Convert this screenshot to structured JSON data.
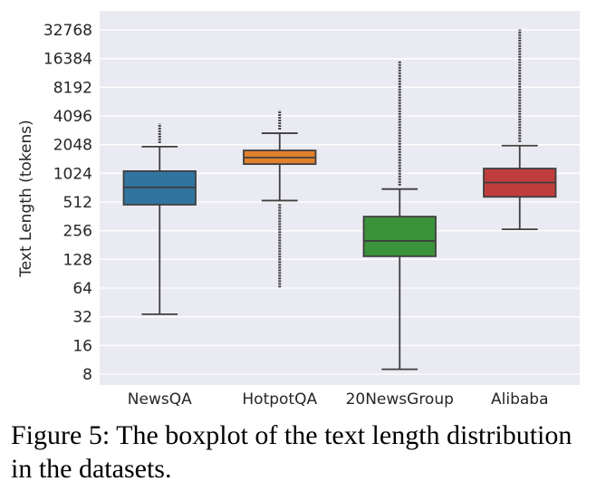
{
  "chart_data": {
    "type": "boxplot",
    "title": "",
    "xlabel": "",
    "ylabel": "Text Length (tokens)",
    "yscale": "log2",
    "ylim": [
      6.5,
      42000
    ],
    "yticks": [
      8,
      16,
      32,
      64,
      128,
      256,
      512,
      1024,
      2048,
      4096,
      8192,
      16384,
      32768
    ],
    "ytick_labels": [
      "8",
      "16",
      "32",
      "64",
      "128",
      "256",
      "512",
      "1024",
      "2048",
      "4096",
      "8192",
      "16384",
      "32768"
    ],
    "grid": true,
    "categories": [
      "NewsQA",
      "HotpotQA",
      "20NewsGroup",
      "Alibaba"
    ],
    "boxes": [
      {
        "category": "NewsQA",
        "color": "#3274a1",
        "whisker_low": 34,
        "q1": 480,
        "median": 730,
        "q3": 1080,
        "whisker_high": 1950,
        "outliers_low": 0,
        "outliers_high": 3400
      },
      {
        "category": "HotpotQA",
        "color": "#e1812c",
        "whisker_low": 530,
        "q1": 1280,
        "median": 1500,
        "q3": 1780,
        "whisker_high": 2700,
        "outliers_low": 65,
        "outliers_high": 4700
      },
      {
        "category": "20NewsGroup",
        "color": "#3a923a",
        "whisker_low": 9,
        "q1": 138,
        "median": 200,
        "q3": 360,
        "whisker_high": 700,
        "outliers_low": 0,
        "outliers_high": 15500
      },
      {
        "category": "Alibaba",
        "color": "#c03d3e",
        "whisker_low": 265,
        "q1": 580,
        "median": 820,
        "q3": 1150,
        "whisker_high": 2000,
        "outliers_low": 0,
        "outliers_high": 33000
      }
    ]
  },
  "caption": {
    "text": "Figure 5: The boxplot of the text length distribution in the datasets."
  }
}
